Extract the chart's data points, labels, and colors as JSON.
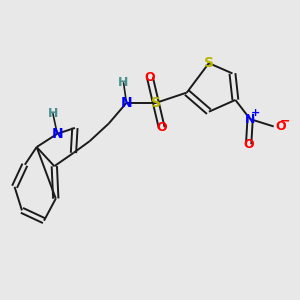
{
  "background_color": "#e8e8e8",
  "figsize": [
    3.0,
    3.0
  ],
  "dpi": 100,
  "colors": {
    "bond": "#1a1a1a",
    "S_color": "#b8b800",
    "N_color": "#0000ff",
    "O_color": "#ff0000",
    "H_color": "#4a9090",
    "C_color": "#1a1a1a"
  },
  "lw": 1.4,
  "xlim": [
    0.0,
    1.0
  ],
  "ylim": [
    0.0,
    1.0
  ]
}
